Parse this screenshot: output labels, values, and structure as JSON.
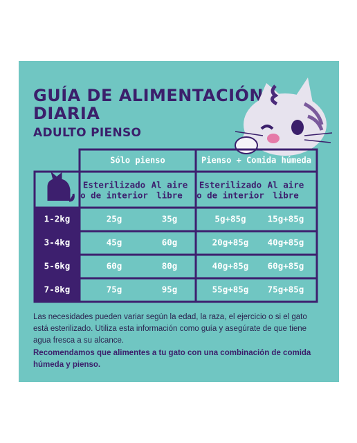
{
  "header": {
    "title": [
      "GUÍA DE ALIMENTACIÓN",
      "DIARIA"
    ],
    "subtitle": "ADULTO PIENSO"
  },
  "table": {
    "groups": [
      "Sólo pienso",
      "Pienso + Comida húmeda"
    ],
    "columns": [
      [
        "Esterilizado",
        "o de interior"
      ],
      [
        "Al aire",
        "libre"
      ],
      [
        "Esterilizado",
        "o de interior"
      ],
      [
        "Al aire",
        "libre"
      ]
    ],
    "rows": [
      {
        "label": "1-2kg",
        "cells": [
          "25g",
          "35g",
          "5g+85g",
          "15g+85g"
        ]
      },
      {
        "label": "3-4kg",
        "cells": [
          "45g",
          "60g",
          "20g+85g",
          "40g+85g"
        ]
      },
      {
        "label": "5-6kg",
        "cells": [
          "60g",
          "80g",
          "40g+85g",
          "60g+85g"
        ]
      },
      {
        "label": "7-8kg",
        "cells": [
          "75g",
          "95g",
          "55g+85g",
          "75g+85g"
        ]
      }
    ]
  },
  "notes": [
    "Las necesidades pueden variar según la edad, la raza, el ejercicio o si el gato está esterilizado. Utiliza esta información como guía y asegúrate de que tiene agua fresca a su alcance.",
    "Recomendamos que alimentes a tu gato con una combinación de comida húmeda y pienso."
  ]
}
